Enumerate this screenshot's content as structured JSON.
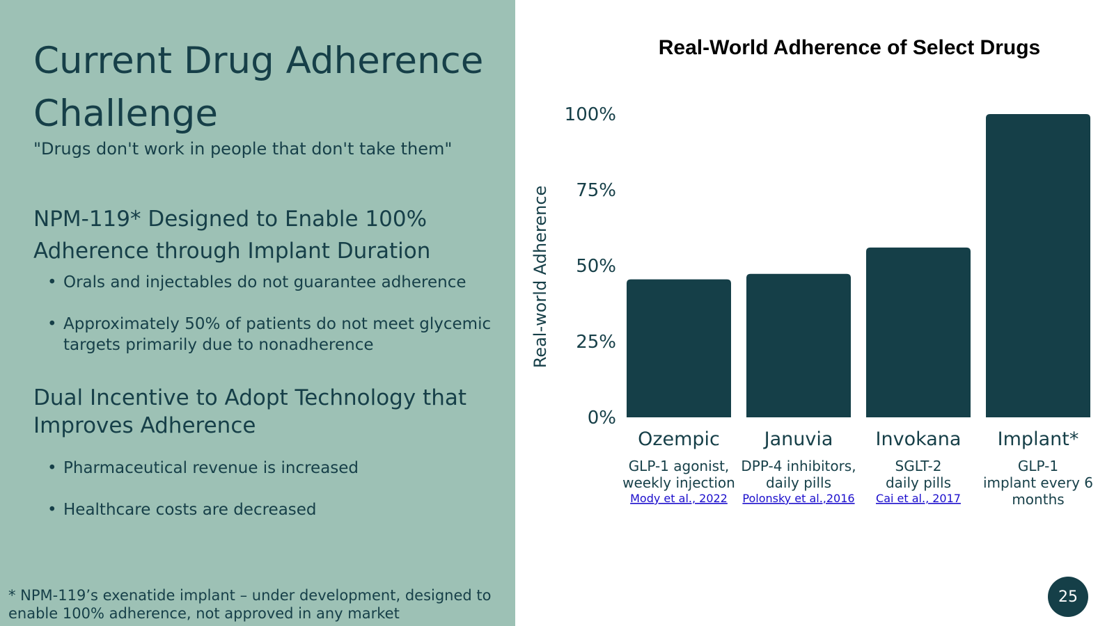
{
  "slide": {
    "title": "Current Drug Adherence Challenge",
    "quote": "\"Drugs don't work in people that don't take them\"",
    "section1": {
      "heading": "NPM-119* Designed to Enable 100% Adherence through Implant Duration",
      "bullets": [
        "Orals and injectables do not guarantee adherence",
        "Approximately 50% of patients do not meet glycemic targets primarily due to nonadherence"
      ]
    },
    "section2": {
      "heading": "Dual Incentive to Adopt Technology that Improves Adherence",
      "bullets": [
        "Pharmaceutical revenue is increased",
        "Healthcare costs are decreased"
      ]
    },
    "footnote": "* NPM-119’s exenatide implant – under development, designed to enable 100% adherence, not approved in any market",
    "page_number": "25",
    "bullet_glyph": "•"
  },
  "colors": {
    "left_panel": "#9dc1b5",
    "dark_teal": "#163f48",
    "link": "#1a0dcc"
  },
  "chart_data": {
    "type": "bar",
    "title": "Real-World Adherence of Select Drugs",
    "ylabel": "Real-world Adherence",
    "xlabel": "",
    "ylim": [
      0,
      100
    ],
    "yticks": [
      0,
      25,
      50,
      75,
      100
    ],
    "ytick_labels": [
      "0%",
      "25%",
      "50%",
      "75%",
      "100%"
    ],
    "grid": false,
    "categories": [
      "Ozempic",
      "Januvia",
      "Invokana",
      "Implant*"
    ],
    "values": [
      45.5,
      47.3,
      56,
      100
    ],
    "descriptions": [
      [
        "GLP-1 agonist,",
        "weekly injection"
      ],
      [
        "DPP-4 inhibitors,",
        "daily pills"
      ],
      [
        "SGLT-2",
        "daily pills"
      ],
      [
        "GLP-1",
        "implant every 6",
        "months"
      ]
    ],
    "citations": [
      "Mody et al., 2022",
      "Polonsky et al.,2016",
      "Cai et al., 2017",
      ""
    ],
    "bar_color": "#153f48"
  }
}
